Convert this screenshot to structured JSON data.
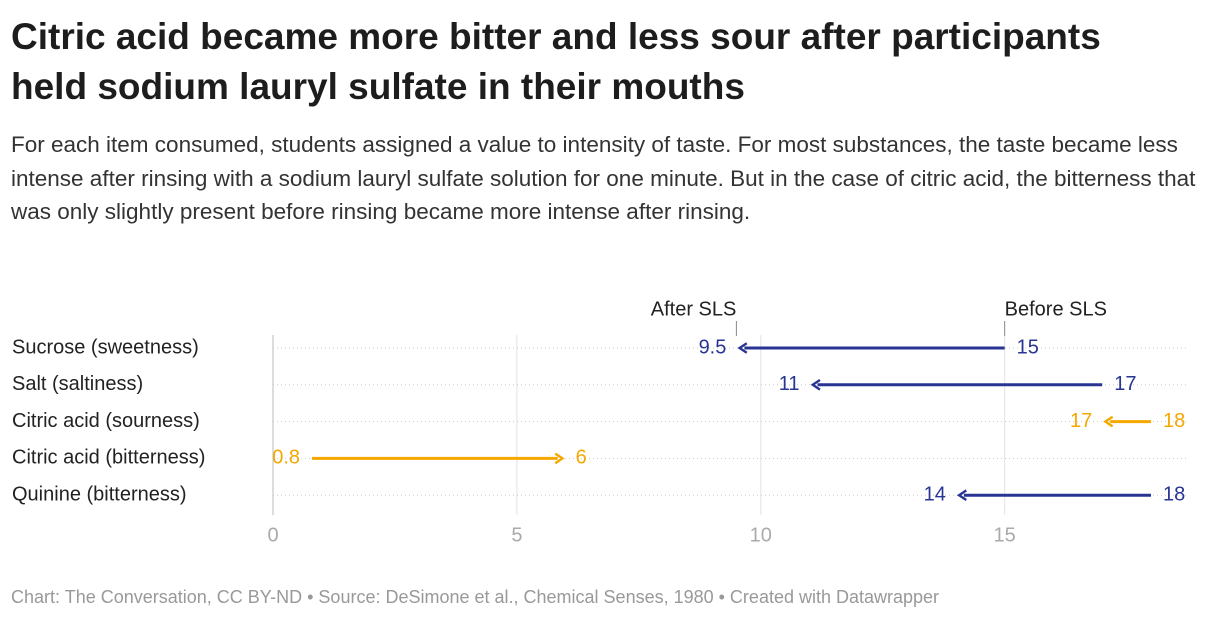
{
  "chart_data": {
    "type": "arrow",
    "title": "Citric acid became more bitter and less sour after participants held sodium lauryl sulfate in their mouths",
    "subtitle": "For each item consumed, students assigned a value to intensity of taste. For most substances, the taste became less intense after rinsing with a sodium lauryl sulfate solution for one minute. But in the case of citric acid, the bitterness that was only slightly present before rinsing became more intense after rinsing.",
    "categories": [
      "Sucrose (sweetness)",
      "Salt (saltiness)",
      "Citric acid (sourness)",
      "Citric acid (bitterness)",
      "Quinine (bitterness)"
    ],
    "series": [
      {
        "name": "Before SLS",
        "values": [
          15,
          17,
          18,
          0.8,
          18
        ]
      },
      {
        "name": "After SLS",
        "values": [
          9.5,
          11,
          17,
          6,
          14
        ]
      }
    ],
    "row_colors": [
      "#283593",
      "#283593",
      "#f5a800",
      "#f5a800",
      "#283593"
    ],
    "xlim": [
      0,
      18
    ],
    "xticks": [
      0,
      5,
      10,
      15
    ],
    "grid": true,
    "footer": "Chart: The Conversation, CC BY-ND • Source: DeSimone et al., Chemical Senses, 1980 • Created with Datawrapper"
  }
}
